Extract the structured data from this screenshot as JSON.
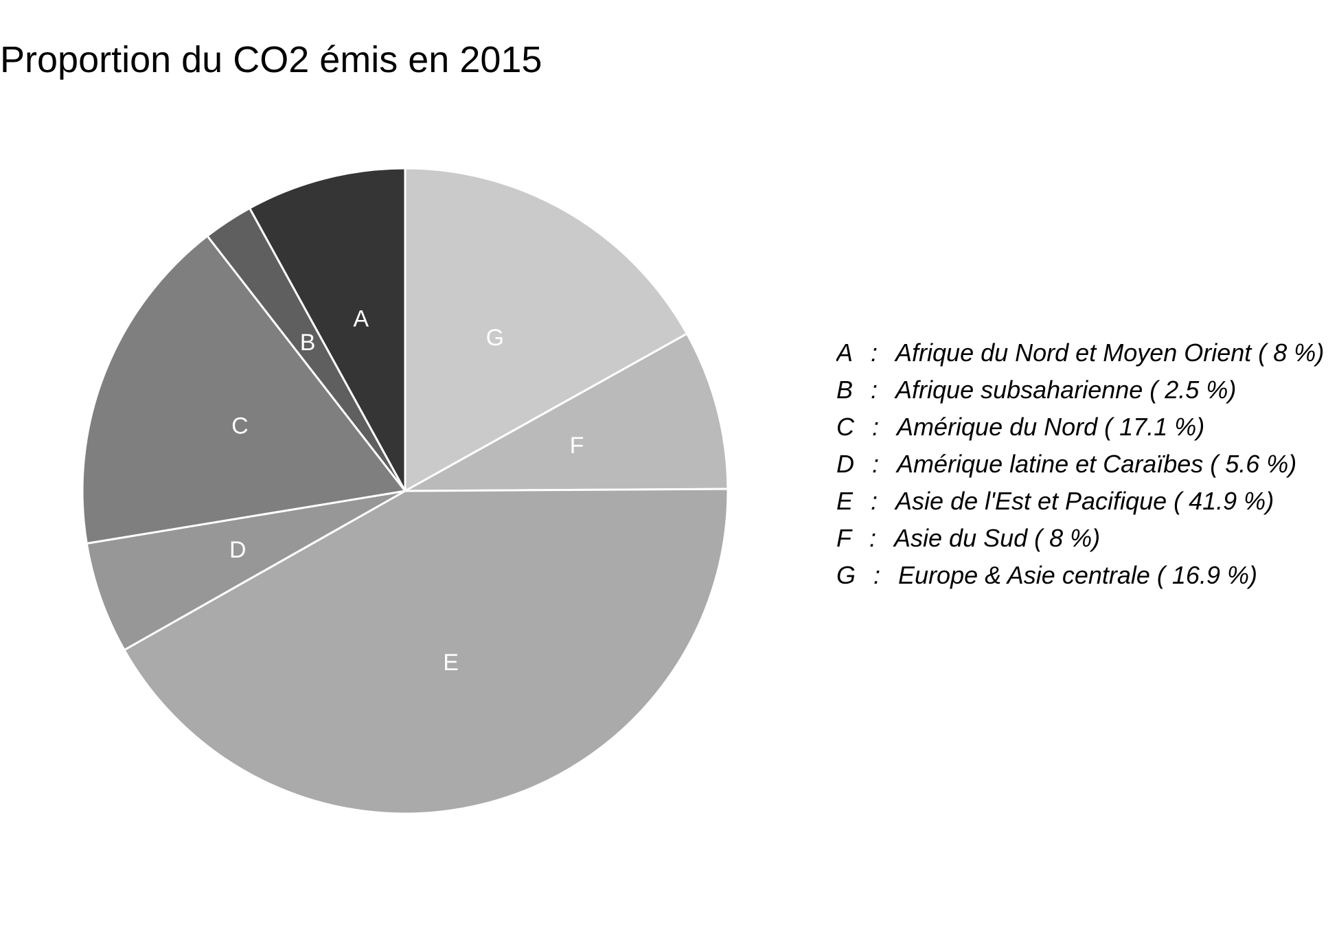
{
  "chart_data": {
    "type": "pie",
    "title": "Proportion du CO2 émis en 2015",
    "start_angle_deg": 0,
    "direction": "clockwise",
    "slice_border_color": "#ffffff",
    "slices": [
      {
        "key": "G",
        "label": "G",
        "name": "Europe & Asie centrale",
        "value": 16.9,
        "color": "#cacaca"
      },
      {
        "key": "F",
        "label": "F",
        "name": "Asie du Sud",
        "value": 8,
        "color": "#bababa"
      },
      {
        "key": "E",
        "label": "E",
        "name": "Asie de l'Est et Pacifique",
        "value": 41.9,
        "color": "#aaaaaa"
      },
      {
        "key": "D",
        "label": "D",
        "name": "Amérique latine et Caraïbes",
        "value": 5.6,
        "color": "#979797"
      },
      {
        "key": "C",
        "label": "C",
        "name": "Amérique du Nord",
        "value": 17.1,
        "color": "#7f7f7f"
      },
      {
        "key": "B",
        "label": "B",
        "name": "Afrique subsaharienne",
        "value": 2.5,
        "color": "#5f5f5f"
      },
      {
        "key": "A",
        "label": "A",
        "name": "Afrique du Nord et Moyen Orient",
        "value": 8,
        "color": "#353535"
      }
    ],
    "legend": {
      "placement": "right",
      "entries": [
        {
          "key": "A",
          "sep": ":",
          "text": "Afrique du Nord et Moyen Orient ( 8 %)"
        },
        {
          "key": "B",
          "sep": ":",
          "text": "Afrique subsaharienne ( 2.5 %)"
        },
        {
          "key": "C",
          "sep": ":",
          "text": "Amérique du Nord ( 17.1 %)"
        },
        {
          "key": "D",
          "sep": ":",
          "text": "Amérique latine et Caraïbes ( 5.6 %)"
        },
        {
          "key": "E",
          "sep": ":",
          "text": "Asie de l'Est et Pacifique ( 41.9 %)"
        },
        {
          "key": "F",
          "sep": ":",
          "text": "Asie du Sud ( 8 %)"
        },
        {
          "key": "G",
          "sep": ":",
          "text": "Europe & Asie centrale ( 16.9 %)"
        }
      ]
    }
  }
}
